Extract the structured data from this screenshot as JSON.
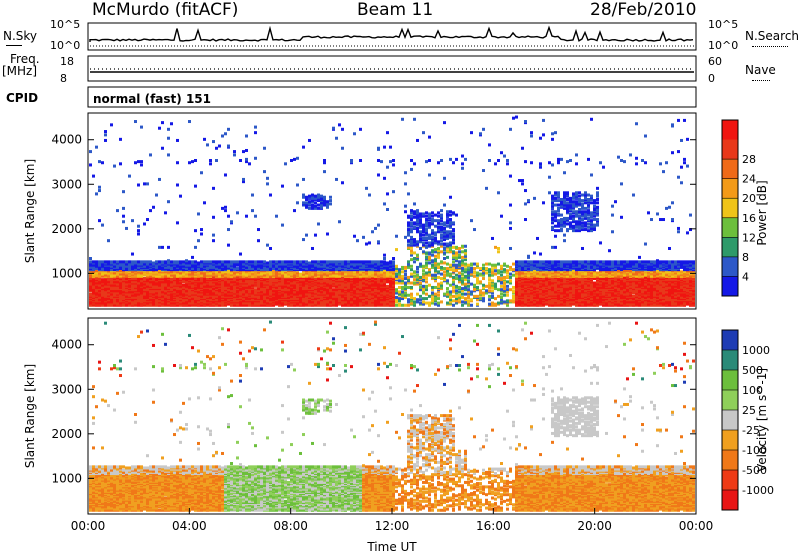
{
  "header": {
    "station": "McMurdo (fitACF)",
    "beam": "Beam 11",
    "date": "28/Feb/2010"
  },
  "top_panels": {
    "nsky_label": "N.Sky",
    "nsearch_label": "N.Search",
    "noise_left_ticks": [
      "10^5",
      "10^0"
    ],
    "noise_right_ticks": [
      "10^5",
      "10^0"
    ],
    "freq_label": "Freq.",
    "freq_unit": "[MHz]",
    "freq_ticks": [
      "18",
      "8"
    ],
    "nave_label": "Nave",
    "nave_ticks": [
      "60",
      "0"
    ],
    "cpid_label": "CPID",
    "cpid_value": "normal (fast) 151"
  },
  "chart_data": [
    {
      "type": "heatmap",
      "ylabel": "Slant Range [km]",
      "yticks": [
        "1000",
        "2000",
        "3000",
        "4000"
      ],
      "ylim": [
        200,
        4600
      ],
      "xlim": [
        0,
        24
      ],
      "colorbar": {
        "label": "Power [dB]",
        "ticks": [
          "4",
          "8",
          "12",
          "16",
          "20",
          "24",
          "28"
        ],
        "colors": [
          "#1418e6",
          "#2d58c8",
          "#2e9a6a",
          "#6cbf3c",
          "#f0c418",
          "#f39a18",
          "#f06a18",
          "#e8381a",
          "#f01410"
        ]
      }
    },
    {
      "type": "heatmap",
      "xlabel": "Time UT",
      "ylabel": "Slant Range [km]",
      "yticks": [
        "1000",
        "2000",
        "3000",
        "4000"
      ],
      "xticks": [
        "00:00",
        "04:00",
        "08:00",
        "12:00",
        "16:00",
        "20:00",
        "00:00"
      ],
      "ylim": [
        200,
        4600
      ],
      "xlim": [
        0,
        24
      ],
      "colorbar": {
        "label": "Velocity [m s^-1]",
        "ticks": [
          "1000",
          "500",
          "100",
          "25",
          "-25",
          "-100",
          "-500",
          "-1000"
        ],
        "colors": [
          "#1e3cb4",
          "#2a8a78",
          "#6cbf3c",
          "#8fcf5a",
          "#c8c8c8",
          "#f0a020",
          "#f07818",
          "#ee3a16",
          "#e81414"
        ]
      }
    }
  ]
}
